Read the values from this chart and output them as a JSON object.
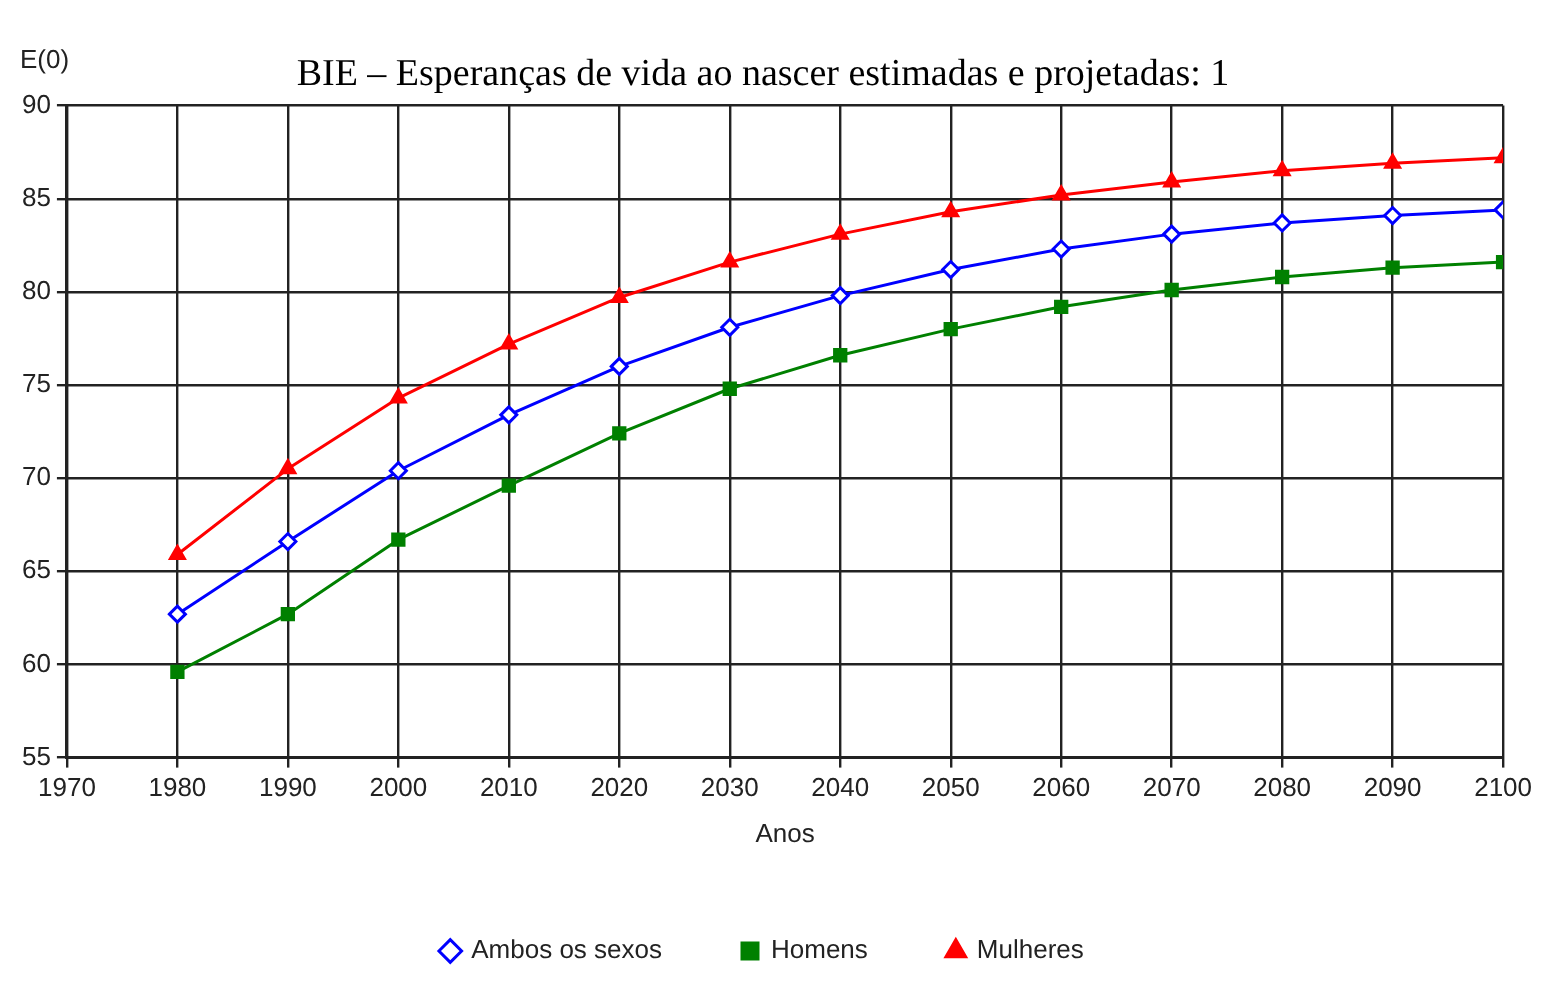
{
  "chart_data": {
    "type": "line",
    "title": "BIE – Esperanças de vida ao nascer estimadas e projetadas: 1",
    "xlabel": "Anos",
    "ylabel": "E(0)",
    "x": [
      1980,
      1990,
      2000,
      2010,
      2020,
      2030,
      2040,
      2050,
      2060,
      2070,
      2080,
      2090,
      2100
    ],
    "xlim": [
      1970,
      2100
    ],
    "xticks": [
      1970,
      1980,
      1990,
      2000,
      2010,
      2020,
      2030,
      2040,
      2050,
      2060,
      2070,
      2080,
      2090,
      2100
    ],
    "ylim": [
      55,
      90
    ],
    "yticks": [
      55,
      60,
      65,
      70,
      75,
      80,
      85,
      90
    ],
    "grid": true,
    "legend": "bottom",
    "line_style": "solid",
    "series": [
      {
        "name": "Ambos os sexos",
        "color": "#0000ff",
        "marker": "diamond",
        "values": [
          62.7,
          66.6,
          70.4,
          73.4,
          76.0,
          78.1,
          79.8,
          81.2,
          82.3,
          83.1,
          83.7,
          84.1,
          84.4
        ]
      },
      {
        "name": "Homens",
        "color": "#008000",
        "marker": "square",
        "values": [
          59.6,
          62.7,
          66.7,
          69.6,
          72.4,
          74.8,
          76.6,
          78.0,
          79.2,
          80.1,
          80.8,
          81.3,
          81.6
        ]
      },
      {
        "name": "Mulheres",
        "color": "#ff0000",
        "marker": "triangle",
        "values": [
          65.9,
          70.5,
          74.3,
          77.2,
          79.7,
          81.6,
          83.1,
          84.3,
          85.2,
          85.9,
          86.5,
          86.9,
          87.2
        ]
      }
    ]
  }
}
